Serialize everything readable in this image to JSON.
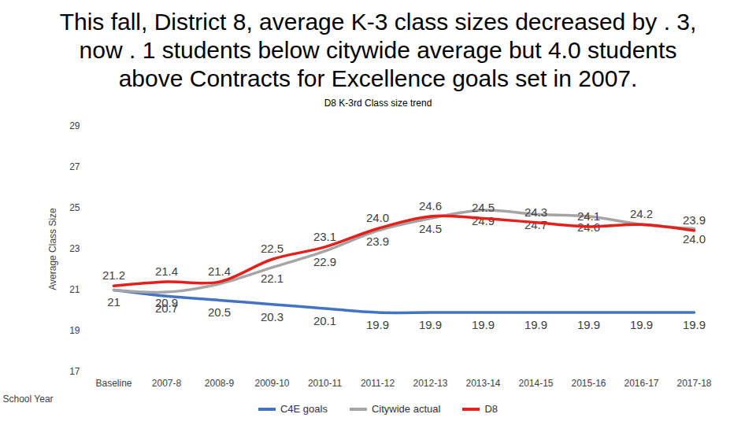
{
  "chart_data": {
    "type": "line",
    "title": "This fall, District 8, average K-3 class sizes decreased by . 3, now . 1 students below citywide average but 4.0 students above Contracts for Excellence goals set in 2007.",
    "subtitle": "D8 K-3rd Class size trend",
    "x_label": "School Year",
    "y_label": "Average Class Size",
    "categories": [
      "Baseline",
      "2007-8",
      "2008-9",
      "2009-10",
      "2010-11",
      "2011-12",
      "2012-13",
      "2013-14",
      "2014-15",
      "2015-16",
      "2016-17",
      "2017-18"
    ],
    "series": [
      {
        "name": "C4E goals",
        "color": "#4472c4",
        "values": [
          21,
          20.7,
          20.5,
          20.3,
          20.1,
          19.9,
          19.9,
          19.9,
          19.9,
          19.9,
          19.9,
          19.9
        ],
        "value_labels": [
          "21",
          "20.7",
          "20.5",
          "20.3",
          "20.1",
          "19.9",
          "19.9",
          "19.9",
          "19.9",
          "19.9",
          "19.9",
          "19.9"
        ]
      },
      {
        "name": "Citywide actual",
        "color": "#a5a5a5",
        "values": [
          21,
          20.9,
          21.3,
          22.1,
          22.9,
          23.9,
          24.5,
          24.9,
          24.7,
          24.6,
          24.2,
          24.0
        ],
        "value_labels": [
          null,
          "20.9",
          null,
          "22.1",
          "22.9",
          "23.9",
          "24.5",
          "24.9",
          "24.7",
          "24.6",
          null,
          "24.0"
        ]
      },
      {
        "name": "D8",
        "color": "#e3201b",
        "values": [
          21.2,
          21.4,
          21.4,
          22.5,
          23.1,
          24.0,
          24.6,
          24.5,
          24.3,
          24.1,
          24.2,
          23.9
        ],
        "value_labels": [
          "21.2",
          "21.4",
          "21.4",
          "22.5",
          "23.1",
          "24.0",
          "24.6",
          "24.5",
          "24.3",
          "24.1",
          "24.2",
          "23.9"
        ]
      }
    ],
    "ylim": [
      17,
      29
    ],
    "yticks": [
      17,
      19,
      21,
      23,
      25,
      27,
      29
    ],
    "grid": false,
    "data_labels": true,
    "legend": "bottom"
  }
}
